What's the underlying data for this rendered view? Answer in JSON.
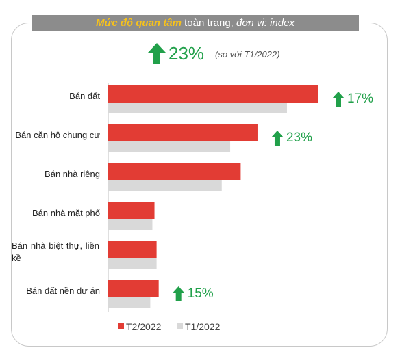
{
  "title": {
    "highlight": "Mức độ quan tâm",
    "middle": " toàn trang, ",
    "italic": "đơn vị: index"
  },
  "headline": {
    "value": "23%",
    "note": "(so với T1/2022)"
  },
  "colors": {
    "t2": "#e23c34",
    "t1": "#d9d9d9",
    "up_arrow": "#21a04a"
  },
  "chart_data": {
    "type": "bar",
    "orientation": "horizontal",
    "categories": [
      "Bán đất",
      "Bán căn hộ chung cư",
      "Bán nhà riêng",
      "Bán nhà mặt phố",
      "Bán nhà biệt thự, liền kề",
      "Bán đất nền dự án"
    ],
    "series": [
      {
        "name": "T2/2022",
        "values": [
          100,
          71,
          63,
          22,
          23,
          24
        ]
      },
      {
        "name": "T1/2022",
        "values": [
          85,
          58,
          54,
          21,
          23,
          20
        ]
      }
    ],
    "xlim": [
      0,
      100
    ],
    "grid": false,
    "legend_position": "bottom",
    "annotations": [
      {
        "category": "Bán đất",
        "text": "17%",
        "direction": "up"
      },
      {
        "category": "Bán căn hộ chung cư",
        "text": "23%",
        "direction": "up"
      },
      {
        "category": "Bán đất nền dự án",
        "text": "15%",
        "direction": "up"
      }
    ]
  }
}
